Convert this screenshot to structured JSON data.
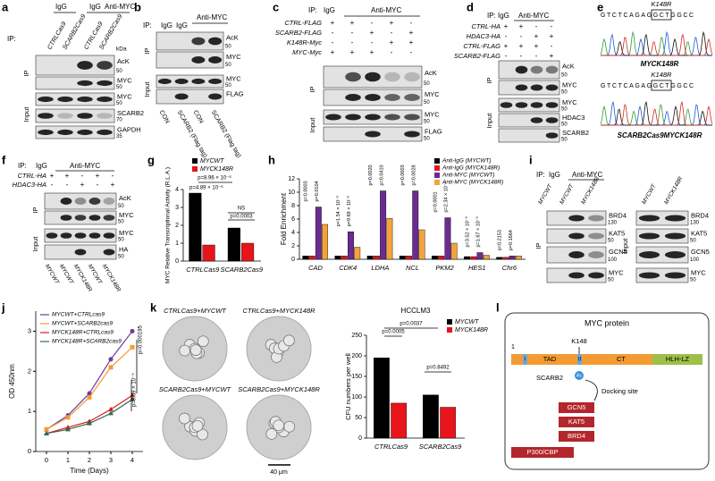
{
  "a": {
    "label": "a",
    "ip": "IP:",
    "header": [
      "IgG",
      "IgG",
      "Anti-MYC"
    ],
    "lanes": [
      "CTRLCas9",
      "SCARB2Cas9",
      "CTRLCas9",
      "SCARB2Cas9"
    ],
    "kda": "kDa",
    "sections": [
      "IP",
      "Input"
    ],
    "rows": [
      {
        "name": "AcK",
        "marker": 50
      },
      {
        "name": "MYC",
        "marker": 50
      },
      {
        "name": "MYC",
        "marker": 50
      },
      {
        "name": "SCARB2",
        "marker": 70
      },
      {
        "name": "GAPDH",
        "marker": 35
      }
    ]
  },
  "b": {
    "label": "b",
    "ip": "IP:",
    "header": [
      "IgG",
      "IgG",
      "Anti-MYC"
    ],
    "lanes": [
      "CON",
      "SCARB2 (Flag tag)",
      "CON",
      "SCARB2 (Flag tag)"
    ],
    "sections": [
      "IP",
      "Input"
    ],
    "rows": [
      {
        "name": "AcK",
        "marker": 50
      },
      {
        "name": "MYC",
        "marker": 50
      },
      {
        "name": "MYC",
        "marker": 50
      },
      {
        "name": "FLAG"
      }
    ]
  },
  "c": {
    "label": "c",
    "ip": "IP:",
    "header": [
      "IgG",
      "Anti-MYC"
    ],
    "sections": [
      "IP",
      "Input"
    ],
    "conditions": [
      {
        "name": "CTRL-FLAG",
        "signs": [
          "+",
          "+",
          "-",
          "+",
          "-"
        ]
      },
      {
        "name": "SCARB2-FLAG",
        "signs": [
          "-",
          "-",
          "+",
          "-",
          "+"
        ]
      },
      {
        "name": "K148R-Myc",
        "signs": [
          "-",
          "-",
          "-",
          "+",
          "+"
        ]
      },
      {
        "name": "MYC-Myc",
        "signs": [
          "+",
          "+",
          "+",
          "-",
          "-"
        ]
      }
    ],
    "rows": [
      {
        "name": "AcK",
        "marker": 50
      },
      {
        "name": "MYC",
        "marker": 50
      },
      {
        "name": "MYC",
        "marker": 50
      },
      {
        "name": "FLAG",
        "marker": 50
      }
    ]
  },
  "d": {
    "label": "d",
    "ip": "IP:",
    "header": [
      "IgG",
      "Anti-MYC"
    ],
    "sections": [
      "IP",
      "Input"
    ],
    "conditions": [
      {
        "name": "CTRL-HA",
        "signs": [
          "+",
          "+",
          "-",
          "-"
        ]
      },
      {
        "name": "HDAC3-HA",
        "signs": [
          "-",
          "-",
          "+",
          "+"
        ]
      },
      {
        "name": "CTRL-FLAG",
        "signs": [
          "+",
          "+",
          "+",
          "-"
        ]
      },
      {
        "name": "SCARB2-FLAG",
        "signs": [
          "-",
          "-",
          "-",
          "+"
        ]
      }
    ],
    "rows": [
      {
        "name": "AcK",
        "marker": 50
      },
      {
        "name": "MYC",
        "marker": 50
      },
      {
        "name": "MYC",
        "marker": 50
      },
      {
        "name": "HDAC3",
        "marker": 50
      },
      {
        "name": "SCARB2",
        "marker": 50
      }
    ]
  },
  "e": {
    "label": "e",
    "mut1": "K148R",
    "seq1": "GTCTCAGAGGCTGGCC",
    "cap1": "MYCK148R",
    "mut2": "K148R",
    "seq2": "GTCTCAGAGGCTGGCC",
    "cap2": "SCARB2Cas9MYCK148R"
  },
  "f": {
    "label": "f",
    "ip": "IP:",
    "header": [
      "IgG",
      "Anti-MYC"
    ],
    "sections": [
      "IP",
      "Input"
    ],
    "conditions": [
      {
        "name": "CTRL-HA",
        "signs": [
          "+",
          "+",
          "-",
          "+",
          "-"
        ]
      },
      {
        "name": "HDAC3-HA",
        "signs": [
          "-",
          "-",
          "+",
          "-",
          "+"
        ]
      }
    ],
    "rows": [
      {
        "name": "AcK",
        "marker": 50
      },
      {
        "name": "MYC",
        "marker": 50
      },
      {
        "name": "MYC",
        "marker": 50
      },
      {
        "name": "HA",
        "marker": 50
      }
    ],
    "lanes": [
      "MYCWT",
      "MYCWT",
      "MYCK148R",
      "MYCWT",
      "MYCK148R"
    ]
  },
  "g": {
    "label": "g",
    "chart": {
      "type": "bar",
      "ylabel": "MYC Relative Transcriptional Activity (R.L.A.)",
      "categories": [
        "CTRLCas9",
        "SCARB2Cas9"
      ],
      "series": [
        {
          "name": "MYCWT",
          "color": "#000000",
          "values": [
            3.8,
            1.85
          ]
        },
        {
          "name": "MYCK148R",
          "color": "#e8141b",
          "values": [
            0.9,
            1.0
          ]
        }
      ],
      "ylim": [
        0,
        4
      ],
      "yticks": [
        0,
        1,
        2,
        3,
        4
      ],
      "annotations": [
        "p=8.96 × 10⁻⁶",
        "p=4.89 × 10⁻⁶",
        "NS",
        "p=0.0003"
      ]
    }
  },
  "h": {
    "label": "h",
    "chart": {
      "type": "bar",
      "ylabel": "Fold Enrichment",
      "categories": [
        "CAD",
        "CDK4",
        "LDHA",
        "NCL",
        "PKM2",
        "HES1",
        "Chr6"
      ],
      "series": [
        {
          "name": "Anti-IgG (MYCWT)",
          "color": "#000000",
          "values": [
            0.5,
            0.5,
            0.5,
            0.5,
            0.5,
            0.4,
            0.3
          ]
        },
        {
          "name": "Anti-IgG (MYCK148R)",
          "color": "#e8141b",
          "values": [
            0.5,
            0.5,
            0.5,
            0.5,
            0.5,
            0.4,
            0.3
          ]
        },
        {
          "name": "Anti-MYC (MYCWT)",
          "color": "#6a2c91",
          "values": [
            7.8,
            4.1,
            10.2,
            10.2,
            6.2,
            1.0,
            0.5
          ]
        },
        {
          "name": "Anti-MYC (MYCK148R)",
          "color": "#f4a23c",
          "values": [
            5.2,
            1.8,
            6.1,
            4.4,
            2.4,
            0.6,
            0.5
          ]
        }
      ],
      "ylim": [
        0,
        12
      ],
      "yticks": [
        0,
        2,
        4,
        6,
        8,
        10,
        12
      ],
      "pvalues": [
        [
          "p=0.0003",
          "p=0.0104"
        ],
        [
          "p=1.54 × 10⁻⁵",
          "p=9.69 × 10⁻⁶"
        ],
        [
          "p=0.0020",
          "p=0.0410"
        ],
        [
          "p=0.0003",
          "p=0.0028"
        ],
        [
          "p=0.0001",
          "p=2.34 × 10⁻⁵"
        ],
        [
          "p=3.52 × 10⁻⁵",
          "p=1.67 × 10⁻⁵"
        ],
        [
          "p=0.2153",
          "p=0.1664"
        ]
      ]
    }
  },
  "i": {
    "label": "i",
    "ip": "IP:",
    "header": [
      "IgG",
      "Anti-MYC"
    ],
    "lanesLeft": [
      "MYCWT",
      "MYCWT",
      "MYCK148R"
    ],
    "lanesRight": [
      "MYCWT",
      "MYCK148R"
    ],
    "sections": [
      "IP",
      "Input"
    ],
    "rows": [
      {
        "name": "BRD4",
        "marker": 130
      },
      {
        "name": "KAT5",
        "marker": 50
      },
      {
        "name": "GCN5",
        "marker": 100
      },
      {
        "name": "MYC",
        "marker": 50
      }
    ],
    "rowsRight": [
      {
        "name": "BRD4",
        "marker": 130
      },
      {
        "name": "KAT5",
        "marker": 50
      },
      {
        "name": "GCN5",
        "marker": 100
      },
      {
        "name": "MYC",
        "marker": 50
      }
    ]
  },
  "j": {
    "label": "j",
    "chart": {
      "type": "line",
      "xlabel": "Time (Days)",
      "ylabel": "OD 450nm",
      "x": [
        0,
        1,
        2,
        3,
        4
      ],
      "xlim": [
        -0.5,
        4.5
      ],
      "xticks": [
        0,
        1,
        2,
        3,
        4
      ],
      "ylim": [
        0,
        3.5
      ],
      "yticks": [
        0,
        1,
        2,
        3
      ],
      "series": [
        {
          "name": "MYCWT+CTRLcas9",
          "color": "#6f3a9b",
          "values": [
            0.55,
            0.9,
            1.45,
            2.3,
            3.0
          ]
        },
        {
          "name": "MYCWT+SCARB2cas9",
          "color": "#f39c33",
          "values": [
            0.55,
            0.85,
            1.35,
            2.1,
            2.6
          ]
        },
        {
          "name": "MYCK148R+CTRLcas9",
          "color": "#d7191c",
          "values": [
            0.45,
            0.6,
            0.75,
            1.05,
            1.4
          ]
        },
        {
          "name": "MYCK148R+SCARB2cas9",
          "color": "#2e6b4f",
          "values": [
            0.45,
            0.55,
            0.7,
            0.95,
            1.3
          ]
        }
      ],
      "annotations": [
        "p=0.000195",
        "p=9.59 × 10⁻⁵"
      ]
    }
  },
  "k": {
    "label": "k",
    "images": [
      "CTRLCas9+MYCWT",
      "CTRLCas9+MYCK148R",
      "SCARB2Cas9+MYCWT",
      "SCARB2Cas9+MYCK148R"
    ],
    "scale": "40 μm",
    "chart": {
      "type": "bar",
      "title": "HCCLM3",
      "ylabel": "CFU numbers per well",
      "categories": [
        "CTRLCas9",
        "SCARB2Cas9"
      ],
      "series": [
        {
          "name": "MYCWT",
          "color": "#000000",
          "values": [
            195,
            105
          ]
        },
        {
          "name": "MYCK148R",
          "color": "#e8141b",
          "values": [
            85,
            75
          ]
        }
      ],
      "ylim": [
        0,
        250
      ],
      "yticks": [
        0,
        50,
        100,
        150,
        200,
        250
      ],
      "annotations": [
        "p=0.0037",
        "p=0.0005",
        "p=0.8492"
      ]
    }
  },
  "l": {
    "label": "l",
    "title": "MYC protein",
    "start": "1",
    "site": "K148",
    "domains": [
      "TAD",
      "CT",
      "HLH-LZ"
    ],
    "boxes": [
      "I",
      "II"
    ],
    "partner": "SCARB2",
    "ac": "Ac",
    "dock": "Docking site",
    "factors": [
      "GCN5",
      "KAT5",
      "BRD4",
      "P300/CBP"
    ]
  }
}
